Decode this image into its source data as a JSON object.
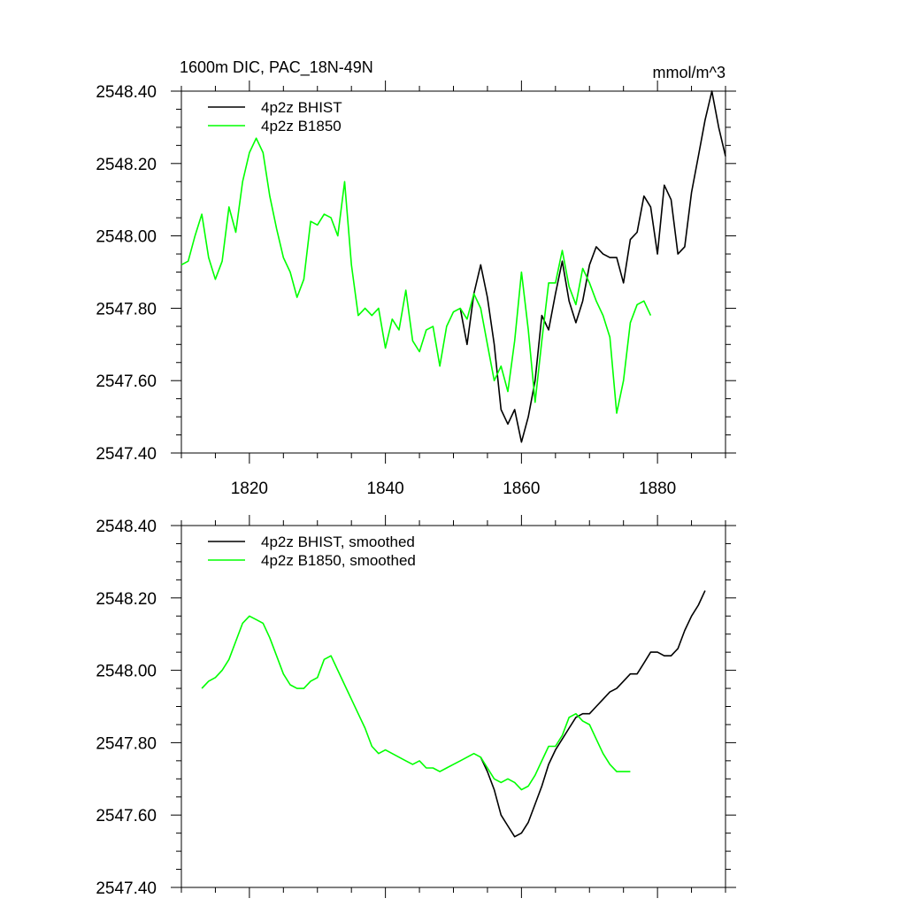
{
  "chart_data": [
    {
      "type": "line",
      "title": "1600m DIC, PAC_18N-49N",
      "units_label": "mmol/m^3",
      "xlim": [
        1810,
        1890
      ],
      "ylim": [
        2547.4,
        2548.4
      ],
      "x_tick_labels": [
        "1820",
        "1840",
        "1860",
        "1880"
      ],
      "x_ticks": [
        1820,
        1840,
        1860,
        1880
      ],
      "y_tick_labels": [
        "2547.40",
        "2547.60",
        "2547.80",
        "2548.00",
        "2548.20",
        "2548.40"
      ],
      "y_ticks": [
        2547.4,
        2547.6,
        2547.8,
        2548.0,
        2548.2,
        2548.4
      ],
      "legend_position": "top-left",
      "series": [
        {
          "name": "4p2z BHIST",
          "color": "#000000",
          "x": [
            1851,
            1852,
            1853,
            1854,
            1855,
            1856,
            1857,
            1858,
            1859,
            1860,
            1861,
            1862,
            1863,
            1864,
            1865,
            1866,
            1867,
            1868,
            1869,
            1870,
            1871,
            1872,
            1873,
            1874,
            1875,
            1876,
            1877,
            1878,
            1879,
            1880,
            1881,
            1882,
            1883,
            1884,
            1885,
            1886,
            1887,
            1888,
            1889,
            1890
          ],
          "values": [
            2547.8,
            2547.7,
            2547.84,
            2547.92,
            2547.83,
            2547.7,
            2547.52,
            2547.48,
            2547.52,
            2547.43,
            2547.5,
            2547.6,
            2547.78,
            2547.74,
            2547.84,
            2547.93,
            2547.82,
            2547.76,
            2547.82,
            2547.92,
            2547.97,
            2547.95,
            2547.94,
            2547.94,
            2547.87,
            2547.99,
            2548.01,
            2548.11,
            2548.08,
            2547.95,
            2548.14,
            2548.1,
            2547.95,
            2547.97,
            2548.12,
            2548.22,
            2548.32,
            2548.4,
            2548.3,
            2548.22
          ]
        },
        {
          "name": "4p2z B1850",
          "color": "#00ff00",
          "x": [
            1810,
            1811,
            1812,
            1813,
            1814,
            1815,
            1816,
            1817,
            1818,
            1819,
            1820,
            1821,
            1822,
            1823,
            1824,
            1825,
            1826,
            1827,
            1828,
            1829,
            1830,
            1831,
            1832,
            1833,
            1834,
            1835,
            1836,
            1837,
            1838,
            1839,
            1840,
            1841,
            1842,
            1843,
            1844,
            1845,
            1846,
            1847,
            1848,
            1849,
            1850,
            1851,
            1852,
            1853,
            1854,
            1855,
            1856,
            1857,
            1858,
            1859,
            1860,
            1861,
            1862,
            1863,
            1864,
            1865,
            1866,
            1867,
            1868,
            1869,
            1870,
            1871,
            1872,
            1873,
            1874,
            1875,
            1876,
            1877,
            1878,
            1879
          ],
          "values": [
            2547.92,
            2547.93,
            2548.0,
            2548.06,
            2547.94,
            2547.88,
            2547.93,
            2548.08,
            2548.01,
            2548.15,
            2548.23,
            2548.27,
            2548.23,
            2548.11,
            2548.02,
            2547.94,
            2547.9,
            2547.83,
            2547.88,
            2548.04,
            2548.03,
            2548.06,
            2548.05,
            2548.0,
            2548.15,
            2547.92,
            2547.78,
            2547.8,
            2547.78,
            2547.8,
            2547.69,
            2547.77,
            2547.74,
            2547.85,
            2547.71,
            2547.68,
            2547.74,
            2547.75,
            2547.64,
            2547.75,
            2547.79,
            2547.8,
            2547.77,
            2547.84,
            2547.8,
            2547.7,
            2547.6,
            2547.64,
            2547.57,
            2547.71,
            2547.9,
            2547.74,
            2547.54,
            2547.71,
            2547.87,
            2547.87,
            2547.96,
            2547.86,
            2547.81,
            2547.91,
            2547.87,
            2547.82,
            2547.78,
            2547.72,
            2547.51,
            2547.6,
            2547.76,
            2547.81,
            2547.82,
            2547.78
          ]
        }
      ]
    },
    {
      "type": "line",
      "xlim": [
        1810,
        1890
      ],
      "ylim": [
        2547.4,
        2548.4
      ],
      "x_ticks": [
        1820,
        1840,
        1860,
        1880
      ],
      "y_tick_labels": [
        "2547.40",
        "2547.60",
        "2547.80",
        "2548.00",
        "2548.20",
        "2548.40"
      ],
      "y_ticks": [
        2547.4,
        2547.6,
        2547.8,
        2548.0,
        2548.2,
        2548.4
      ],
      "legend_position": "top-left",
      "series": [
        {
          "name": "4p2z BHIST, smoothed",
          "color": "#000000",
          "x": [
            1854,
            1855,
            1856,
            1857,
            1858,
            1859,
            1860,
            1861,
            1862,
            1863,
            1864,
            1865,
            1866,
            1867,
            1868,
            1869,
            1870,
            1871,
            1872,
            1873,
            1874,
            1875,
            1876,
            1877,
            1878,
            1879,
            1880,
            1881,
            1882,
            1883,
            1884,
            1885,
            1886,
            1887
          ],
          "values": [
            2547.76,
            2547.72,
            2547.67,
            2547.6,
            2547.57,
            2547.54,
            2547.55,
            2547.58,
            2547.63,
            2547.68,
            2547.74,
            2547.78,
            2547.81,
            2547.84,
            2547.87,
            2547.88,
            2547.88,
            2547.9,
            2547.92,
            2547.94,
            2547.95,
            2547.97,
            2547.99,
            2547.99,
            2548.02,
            2548.05,
            2548.05,
            2548.04,
            2548.04,
            2548.06,
            2548.11,
            2548.15,
            2548.18,
            2548.22
          ]
        },
        {
          "name": "4p2z B1850, smoothed",
          "color": "#00ff00",
          "x": [
            1813,
            1814,
            1815,
            1816,
            1817,
            1818,
            1819,
            1820,
            1821,
            1822,
            1823,
            1824,
            1825,
            1826,
            1827,
            1828,
            1829,
            1830,
            1831,
            1832,
            1833,
            1834,
            1835,
            1836,
            1837,
            1838,
            1839,
            1840,
            1841,
            1842,
            1843,
            1844,
            1845,
            1846,
            1847,
            1848,
            1849,
            1850,
            1851,
            1852,
            1853,
            1854,
            1855,
            1856,
            1857,
            1858,
            1859,
            1860,
            1861,
            1862,
            1863,
            1864,
            1865,
            1866,
            1867,
            1868,
            1869,
            1870,
            1871,
            1872,
            1873,
            1874,
            1875,
            1876
          ],
          "values": [
            2547.95,
            2547.97,
            2547.98,
            2548.0,
            2548.03,
            2548.08,
            2548.13,
            2548.15,
            2548.14,
            2548.13,
            2548.09,
            2548.04,
            2547.99,
            2547.96,
            2547.95,
            2547.95,
            2547.97,
            2547.98,
            2548.03,
            2548.04,
            2548.0,
            2547.96,
            2547.92,
            2547.88,
            2547.84,
            2547.79,
            2547.77,
            2547.78,
            2547.77,
            2547.76,
            2547.75,
            2547.74,
            2547.75,
            2547.73,
            2547.73,
            2547.72,
            2547.73,
            2547.74,
            2547.75,
            2547.76,
            2547.77,
            2547.76,
            2547.73,
            2547.7,
            2547.69,
            2547.7,
            2547.69,
            2547.67,
            2547.68,
            2547.71,
            2547.75,
            2547.79,
            2547.79,
            2547.82,
            2547.87,
            2547.88,
            2547.86,
            2547.85,
            2547.81,
            2547.77,
            2547.74,
            2547.72,
            2547.72,
            2547.72
          ]
        }
      ]
    }
  ]
}
